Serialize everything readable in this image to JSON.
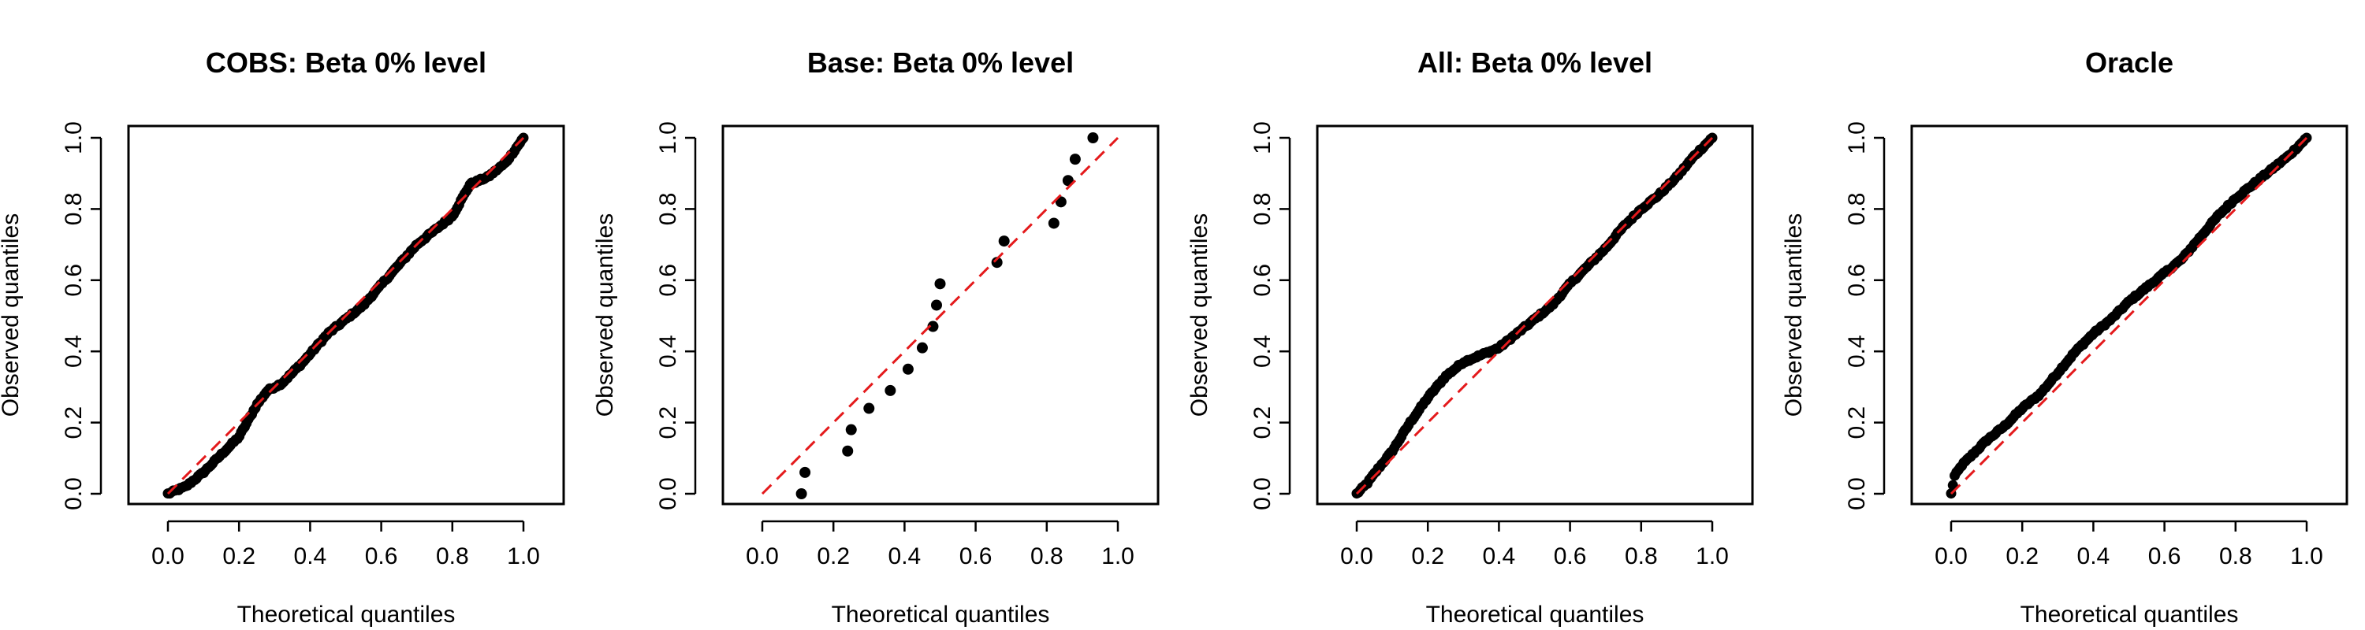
{
  "chart_data": [
    {
      "type": "scatter",
      "title": "COBS: Beta 0% level",
      "xlabel": "Theoretical quantiles",
      "ylabel": "Observed quantiles",
      "xlim": [
        0,
        1
      ],
      "ylim": [
        0,
        1
      ],
      "xticks": [
        "0.0",
        "0.2",
        "0.4",
        "0.6",
        "0.8",
        "1.0"
      ],
      "yticks": [
        "0.0",
        "0.2",
        "0.4",
        "0.6",
        "0.8",
        "1.0"
      ],
      "reference_line": {
        "from": [
          0,
          0
        ],
        "to": [
          1,
          1
        ],
        "style": "dashed",
        "color": "#e41a1c"
      },
      "quantile_curve": [
        [
          0.0,
          0.0
        ],
        [
          0.05,
          0.02
        ],
        [
          0.1,
          0.06
        ],
        [
          0.15,
          0.11
        ],
        [
          0.2,
          0.16
        ],
        [
          0.25,
          0.25
        ],
        [
          0.28,
          0.29
        ],
        [
          0.32,
          0.31
        ],
        [
          0.38,
          0.37
        ],
        [
          0.45,
          0.45
        ],
        [
          0.55,
          0.53
        ],
        [
          0.62,
          0.61
        ],
        [
          0.7,
          0.7
        ],
        [
          0.8,
          0.78
        ],
        [
          0.85,
          0.87
        ],
        [
          0.9,
          0.89
        ],
        [
          0.95,
          0.93
        ],
        [
          1.0,
          1.0
        ]
      ]
    },
    {
      "type": "scatter",
      "title": "Base: Beta 0% level",
      "xlabel": "Theoretical quantiles",
      "ylabel": "Observed quantiles",
      "xlim": [
        0,
        1
      ],
      "ylim": [
        0,
        1
      ],
      "xticks": [
        "0.0",
        "0.2",
        "0.4",
        "0.6",
        "0.8",
        "1.0"
      ],
      "yticks": [
        "0.0",
        "0.2",
        "0.4",
        "0.6",
        "0.8",
        "1.0"
      ],
      "reference_line": {
        "from": [
          0,
          0
        ],
        "to": [
          1,
          1
        ],
        "style": "dashed",
        "color": "#e41a1c"
      },
      "points": [
        [
          0.11,
          0.0
        ],
        [
          0.12,
          0.06
        ],
        [
          0.24,
          0.12
        ],
        [
          0.25,
          0.18
        ],
        [
          0.3,
          0.24
        ],
        [
          0.36,
          0.29
        ],
        [
          0.41,
          0.35
        ],
        [
          0.45,
          0.41
        ],
        [
          0.48,
          0.47
        ],
        [
          0.49,
          0.53
        ],
        [
          0.5,
          0.59
        ],
        [
          0.66,
          0.65
        ],
        [
          0.68,
          0.71
        ],
        [
          0.82,
          0.76
        ],
        [
          0.84,
          0.82
        ],
        [
          0.86,
          0.88
        ],
        [
          0.88,
          0.94
        ],
        [
          0.93,
          1.0
        ]
      ]
    },
    {
      "type": "scatter",
      "title": "All: Beta 0% level",
      "xlabel": "Theoretical quantiles",
      "ylabel": "Observed quantiles",
      "xlim": [
        0,
        1
      ],
      "ylim": [
        0,
        1
      ],
      "xticks": [
        "0.0",
        "0.2",
        "0.4",
        "0.6",
        "0.8",
        "1.0"
      ],
      "yticks": [
        "0.0",
        "0.2",
        "0.4",
        "0.6",
        "0.8",
        "1.0"
      ],
      "reference_line": {
        "from": [
          0,
          0
        ],
        "to": [
          1,
          1
        ],
        "style": "dashed",
        "color": "#e41a1c"
      },
      "quantile_curve": [
        [
          0.0,
          0.0
        ],
        [
          0.03,
          0.03
        ],
        [
          0.06,
          0.07
        ],
        [
          0.1,
          0.12
        ],
        [
          0.15,
          0.2
        ],
        [
          0.2,
          0.27
        ],
        [
          0.25,
          0.33
        ],
        [
          0.3,
          0.37
        ],
        [
          0.35,
          0.39
        ],
        [
          0.4,
          0.41
        ],
        [
          0.45,
          0.45
        ],
        [
          0.5,
          0.49
        ],
        [
          0.55,
          0.53
        ],
        [
          0.6,
          0.59
        ],
        [
          0.65,
          0.64
        ],
        [
          0.7,
          0.69
        ],
        [
          0.75,
          0.75
        ],
        [
          0.8,
          0.8
        ],
        [
          0.85,
          0.84
        ],
        [
          0.9,
          0.89
        ],
        [
          0.95,
          0.95
        ],
        [
          1.0,
          1.0
        ]
      ]
    },
    {
      "type": "scatter",
      "title": "Oracle",
      "xlabel": "Theoretical quantiles",
      "ylabel": "Observed quantiles",
      "xlim": [
        0,
        1
      ],
      "ylim": [
        0,
        1
      ],
      "xticks": [
        "0.0",
        "0.2",
        "0.4",
        "0.6",
        "0.8",
        "1.0"
      ],
      "yticks": [
        "0.0",
        "0.2",
        "0.4",
        "0.6",
        "0.8",
        "1.0"
      ],
      "reference_line": {
        "from": [
          0,
          0
        ],
        "to": [
          1,
          1
        ],
        "style": "dashed",
        "color": "#e41a1c"
      },
      "quantile_curve": [
        [
          0.0,
          0.0
        ],
        [
          0.01,
          0.05
        ],
        [
          0.03,
          0.08
        ],
        [
          0.06,
          0.11
        ],
        [
          0.1,
          0.15
        ],
        [
          0.15,
          0.19
        ],
        [
          0.2,
          0.24
        ],
        [
          0.25,
          0.28
        ],
        [
          0.3,
          0.34
        ],
        [
          0.35,
          0.4
        ],
        [
          0.4,
          0.45
        ],
        [
          0.45,
          0.49
        ],
        [
          0.5,
          0.54
        ],
        [
          0.55,
          0.58
        ],
        [
          0.6,
          0.62
        ],
        [
          0.65,
          0.66
        ],
        [
          0.7,
          0.72
        ],
        [
          0.75,
          0.78
        ],
        [
          0.8,
          0.83
        ],
        [
          0.85,
          0.87
        ],
        [
          0.9,
          0.91
        ],
        [
          0.95,
          0.95
        ],
        [
          1.0,
          1.0
        ]
      ]
    }
  ]
}
